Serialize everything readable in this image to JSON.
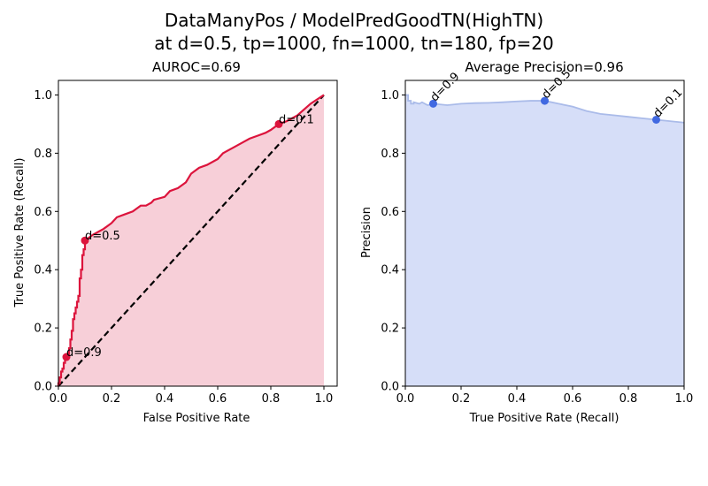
{
  "figure": {
    "title_line1": "DataManyPos / ModelPredGoodTN(HighTN)",
    "title_line2": "at d=0.5, tp=1000, fn=1000, tn=180, fp=20"
  },
  "chart_data": [
    {
      "type": "line",
      "title": "AUROC=0.69",
      "xlabel": "False Positive Rate",
      "ylabel": "True Positive Rate (Recall)",
      "xlim": [
        0,
        1.05
      ],
      "ylim": [
        0,
        1.05
      ],
      "xticks": [
        "0.0",
        "0.2",
        "0.4",
        "0.6",
        "0.8",
        "1.0"
      ],
      "yticks": [
        "0.0",
        "0.2",
        "0.4",
        "0.6",
        "0.8",
        "1.0"
      ],
      "grid": false,
      "colors": {
        "curve": "#dc143c",
        "fill": "#f7cfd8",
        "diagonal": "#000000"
      },
      "series": [
        {
          "x": [
            0,
            0,
            0.005,
            0.005,
            0.01,
            0.01,
            0.015,
            0.015,
            0.02,
            0.02,
            0.025,
            0.025,
            0.03,
            0.03,
            0.04,
            0.04,
            0.045,
            0.045,
            0.05,
            0.05,
            0.055,
            0.055,
            0.06,
            0.06,
            0.065,
            0.065,
            0.07,
            0.07,
            0.075,
            0.075,
            0.08,
            0.08,
            0.085,
            0.085,
            0.09,
            0.09,
            0.095,
            0.095,
            0.1,
            0.1,
            0.13,
            0.15,
            0.17,
            0.2,
            0.22,
            0.25,
            0.28,
            0.31,
            0.33,
            0.35,
            0.36,
            0.4,
            0.42,
            0.45,
            0.48,
            0.5,
            0.53,
            0.56,
            0.6,
            0.62,
            0.66,
            0.7,
            0.72,
            0.75,
            0.78,
            0.8,
            0.83,
            0.86,
            0.9,
            0.95,
            1.0
          ],
          "y": [
            0,
            0.01,
            0.01,
            0.03,
            0.03,
            0.05,
            0.05,
            0.06,
            0.06,
            0.08,
            0.08,
            0.1,
            0.1,
            0.11,
            0.11,
            0.13,
            0.13,
            0.16,
            0.16,
            0.19,
            0.19,
            0.23,
            0.23,
            0.25,
            0.25,
            0.27,
            0.27,
            0.29,
            0.29,
            0.31,
            0.31,
            0.37,
            0.37,
            0.4,
            0.4,
            0.45,
            0.45,
            0.47,
            0.47,
            0.5,
            0.52,
            0.53,
            0.54,
            0.56,
            0.58,
            0.59,
            0.6,
            0.62,
            0.62,
            0.63,
            0.64,
            0.65,
            0.67,
            0.68,
            0.7,
            0.73,
            0.75,
            0.76,
            0.78,
            0.8,
            0.82,
            0.84,
            0.85,
            0.86,
            0.87,
            0.88,
            0.9,
            0.91,
            0.93,
            0.97,
            1.0
          ]
        }
      ],
      "baseline": {
        "x": [
          0,
          1
        ],
        "y": [
          0,
          1
        ]
      },
      "markers": [
        {
          "label": "d=0.9",
          "x": 0.03,
          "y": 0.1
        },
        {
          "label": "d=0.5",
          "x": 0.1,
          "y": 0.5
        },
        {
          "label": "d=0.1",
          "x": 0.83,
          "y": 0.9
        }
      ]
    },
    {
      "type": "area",
      "title": "Average Precision=0.96",
      "xlabel": "True Positive Rate (Recall)",
      "ylabel": "Precision",
      "xlim": [
        0,
        1.0
      ],
      "ylim": [
        0,
        1.05
      ],
      "xticks": [
        "0.0",
        "0.2",
        "0.4",
        "0.6",
        "0.8",
        "1.0"
      ],
      "yticks": [
        "0.0",
        "0.2",
        "0.4",
        "0.6",
        "0.8",
        "1.0"
      ],
      "grid": false,
      "colors": {
        "curve": "#aabbe9",
        "fill": "#d6def8",
        "marker": "#4169e1"
      },
      "series": [
        {
          "x": [
            0,
            0.01,
            0.01,
            0.02,
            0.02,
            0.03,
            0.03,
            0.05,
            0.06,
            0.08,
            0.1,
            0.15,
            0.2,
            0.25,
            0.3,
            0.35,
            0.4,
            0.45,
            0.5,
            0.55,
            0.6,
            0.65,
            0.7,
            0.75,
            0.8,
            0.85,
            0.9,
            0.95,
            1.0
          ],
          "y": [
            1.0,
            1.0,
            0.98,
            0.98,
            0.97,
            0.97,
            0.975,
            0.97,
            0.975,
            0.965,
            0.97,
            0.965,
            0.97,
            0.972,
            0.973,
            0.975,
            0.978,
            0.98,
            0.98,
            0.97,
            0.96,
            0.945,
            0.935,
            0.93,
            0.925,
            0.92,
            0.915,
            0.91,
            0.905
          ]
        }
      ],
      "markers": [
        {
          "label": "d=0.9",
          "x": 0.1,
          "y": 0.97
        },
        {
          "label": "d=0.5",
          "x": 0.5,
          "y": 0.98
        },
        {
          "label": "d=0.1",
          "x": 0.9,
          "y": 0.915
        }
      ]
    }
  ]
}
